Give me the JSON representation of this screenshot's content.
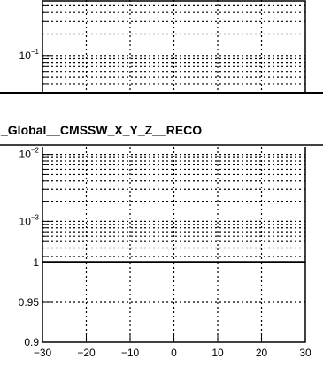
{
  "canvas_title": "_Global__CMSSW_X_Y_Z__RECO",
  "chart_data": [
    {
      "type": "line",
      "panel": "top-partial",
      "yscale": "log",
      "ylim": [
        0.03,
        0.6
      ],
      "y_tick_labels": [
        {
          "value": 0.1,
          "base": "10",
          "exp": "−1"
        }
      ],
      "grid": true,
      "series": []
    },
    {
      "type": "line",
      "panel": "upper",
      "yscale": "log",
      "ylim": [
        0.00025,
        0.013
      ],
      "y_tick_labels": [
        {
          "value": 0.01,
          "base": "10",
          "exp": "−2"
        },
        {
          "value": 0.001,
          "base": "10",
          "exp": "−3"
        }
      ],
      "grid": true,
      "series": []
    },
    {
      "type": "line",
      "panel": "ratio",
      "ylim": [
        0.9,
        1.0
      ],
      "y_ticks": [
        0.9,
        0.95,
        1.0
      ],
      "y_tick_labels": [
        "0.9",
        "0.95",
        "1"
      ],
      "xlim": [
        -30,
        30
      ],
      "x_ticks": [
        -30,
        -20,
        -10,
        0,
        10,
        20,
        30
      ],
      "x_tick_labels": [
        "−30",
        "−20",
        "−10",
        "0",
        "10",
        "20",
        "30"
      ],
      "grid": true,
      "series": []
    }
  ]
}
